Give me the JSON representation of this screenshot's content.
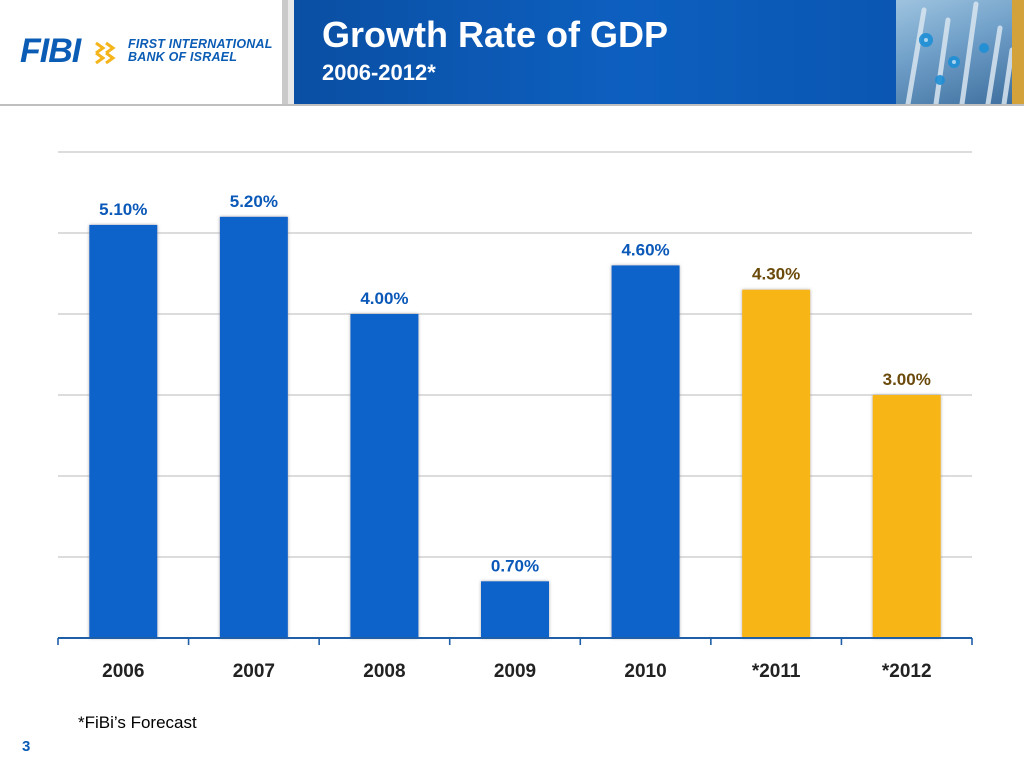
{
  "header": {
    "logo": {
      "brand": "FIBI",
      "name_line1": "FIRST INTERNATIONAL",
      "name_line2": "BANK OF ISRAEL"
    },
    "title": "Growth Rate of GDP",
    "subtitle": "2006-2012*"
  },
  "colors": {
    "actual_bar": "#0a63c9",
    "forecast_bar": "#f7b518",
    "actual_label": "#0a58b8",
    "forecast_label": "#6b4a0c",
    "gridline": "#c8c8c8",
    "axis": "#1f5fa8"
  },
  "chart_data": {
    "type": "bar",
    "categories": [
      "2006",
      "2007",
      "2008",
      "2009",
      "2010",
      "*2011",
      "*2012"
    ],
    "values": [
      5.1,
      5.2,
      4.0,
      0.7,
      4.6,
      4.3,
      3.0
    ],
    "data_labels": [
      "5.10%",
      "5.20%",
      "4.00%",
      "0.70%",
      "4.60%",
      "4.30%",
      "3.00%"
    ],
    "forecast": [
      false,
      false,
      false,
      false,
      false,
      true,
      true
    ],
    "ylim": [
      0,
      6
    ],
    "gridlines": [
      1,
      2,
      3,
      4,
      5,
      6
    ],
    "grid": true,
    "title": "",
    "xlabel": "",
    "ylabel": ""
  },
  "footnote": "*FiBi’s Forecast",
  "page_number": "3"
}
